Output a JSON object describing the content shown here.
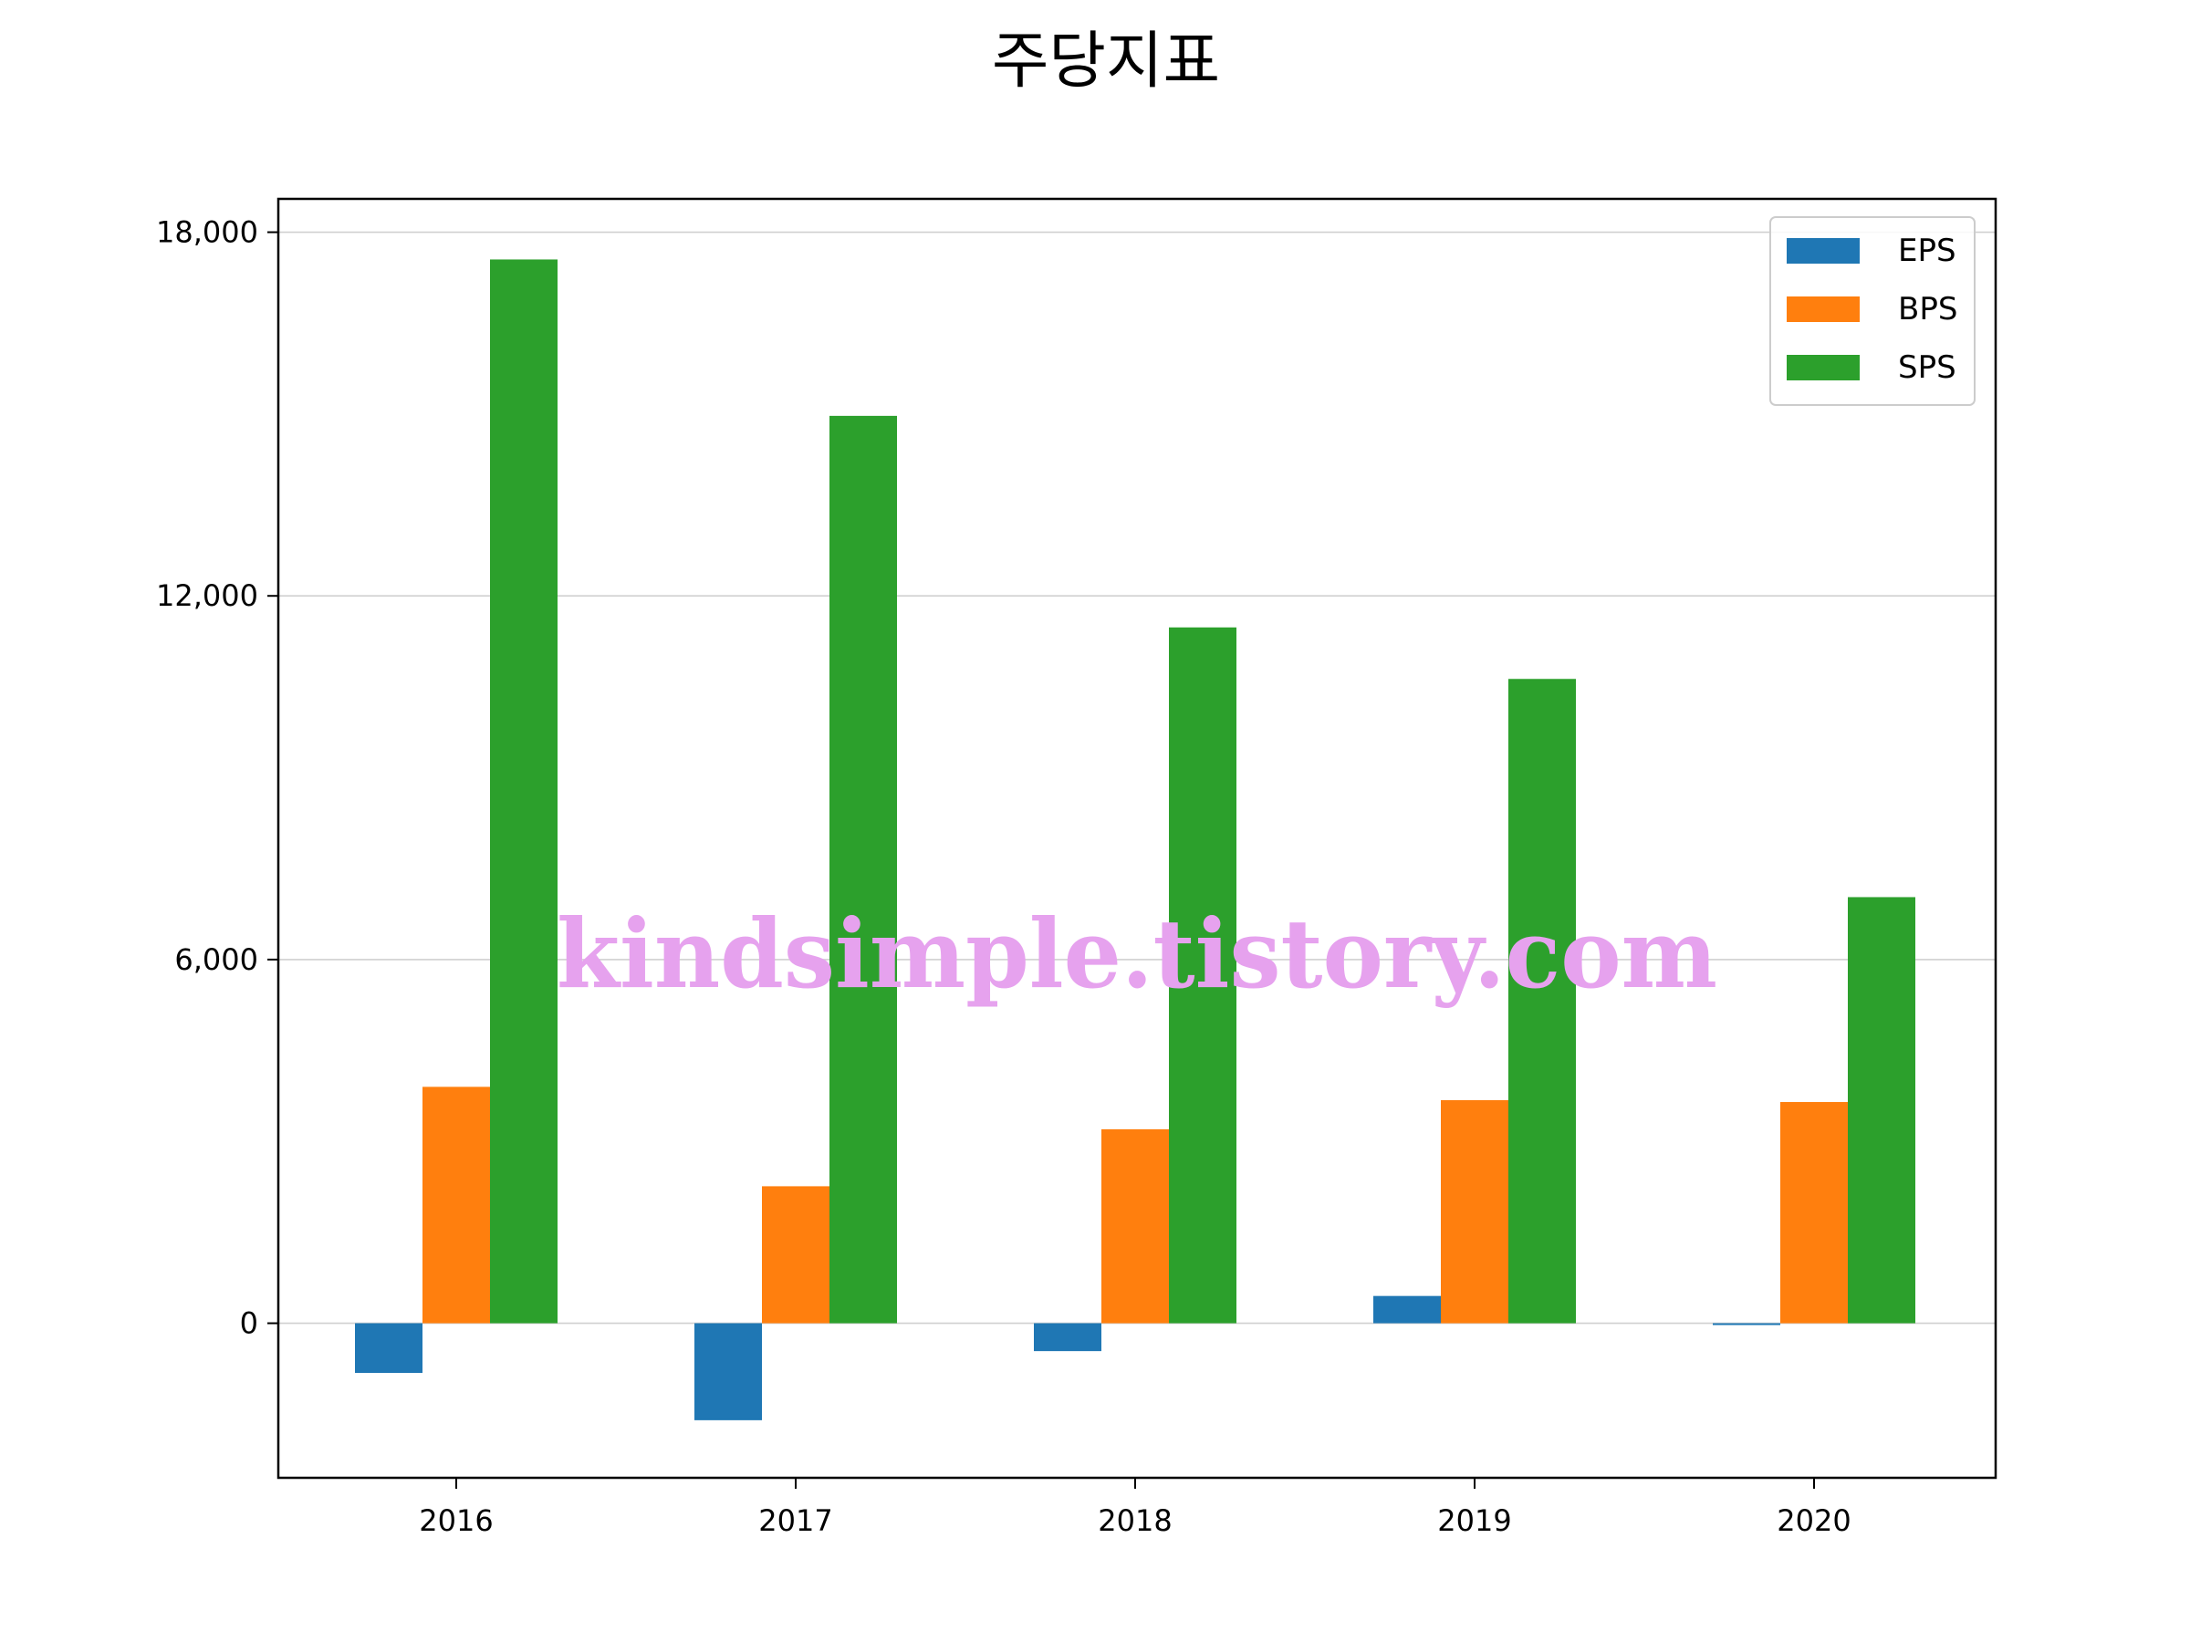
{
  "chart_data": {
    "type": "bar",
    "title": "주당지표",
    "categories": [
      "2016",
      "2017",
      "2018",
      "2019",
      "2020"
    ],
    "series": [
      {
        "name": "EPS",
        "color": "#1f77b4",
        "values": [
          -820,
          -1600,
          -460,
          450,
          -30
        ]
      },
      {
        "name": "BPS",
        "color": "#ff7f0e",
        "values": [
          3900,
          2260,
          3200,
          3680,
          3650
        ]
      },
      {
        "name": "SPS",
        "color": "#2ca02c",
        "values": [
          17550,
          14970,
          11480,
          10630,
          7030
        ]
      }
    ],
    "yticks": [
      0,
      6000,
      12000,
      18000
    ],
    "ytick_labels": [
      "0",
      "6,000",
      "12,000",
      "18,000"
    ],
    "ylim": [
      -2550,
      18550
    ],
    "grid": "y",
    "legend_position": "top-right"
  },
  "watermark": "kindsimple.tistory.com"
}
